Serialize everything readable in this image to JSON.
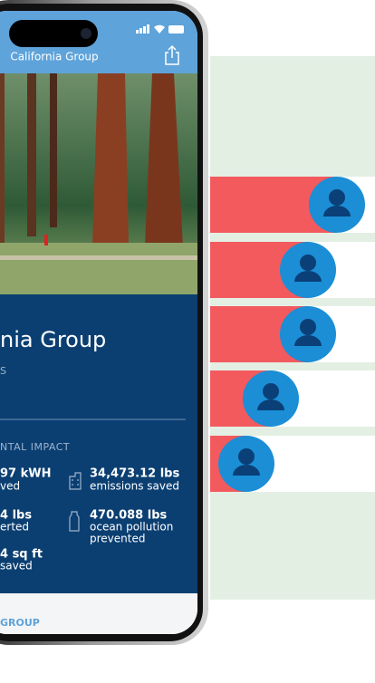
{
  "header": {
    "title": "California Group"
  },
  "profile": {
    "title": "nia Group",
    "subtitle": "S"
  },
  "impact": {
    "heading": "NTAL IMPACT",
    "stats": [
      {
        "value": "97 kWH",
        "label": [
          "ved"
        ]
      },
      {
        "value": "34,473.12 lbs",
        "label": [
          "emissions saved"
        ]
      },
      {
        "value": "4 lbs",
        "label": [
          "erted"
        ]
      },
      {
        "value": "470.088 lbs",
        "label": [
          "ocean pollution",
          "prevented"
        ]
      },
      {
        "value": "4 sq ft",
        "label": [
          "saved"
        ]
      }
    ]
  },
  "footer": {
    "label": "GROUP"
  }
}
